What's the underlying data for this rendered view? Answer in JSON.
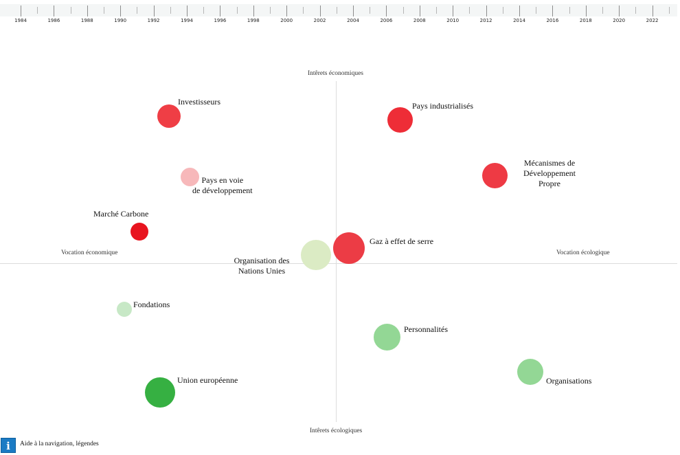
{
  "timeline": {
    "years": [
      "1984",
      "1986",
      "1988",
      "1990",
      "1992",
      "1994",
      "1996",
      "1998",
      "2000",
      "2002",
      "2004",
      "2006",
      "2008",
      "2010",
      "2012",
      "2014",
      "2016",
      "2018",
      "2020",
      "2022"
    ]
  },
  "axes": {
    "top": "Intêrets économiques",
    "bottom": "Intêrets écologiques",
    "left": "Vocation économique",
    "right": "Vocation écologique"
  },
  "nodes": {
    "investisseurs": {
      "label": "Investisseurs",
      "color": "#ef3e45"
    },
    "pays_industrialises": {
      "label": "Pays industrialisés",
      "color": "#ee2d37"
    },
    "pays_en_voie": {
      "label": "Pays en voie\nde développement",
      "color": "#f7b8ba"
    },
    "mdp": {
      "label": "Mécanismes de\nDéveloppement\nPropre",
      "color": "#ee3a44"
    },
    "marche_carbone": {
      "label": "Marché Carbone",
      "color": "#e8141f"
    },
    "onu": {
      "label": "Organisation des\nNations Unies",
      "color": "#dbebc4"
    },
    "ges": {
      "label": "Gaz à effet de serre",
      "color": "#ec3c45"
    },
    "fondations": {
      "label": "Fondations",
      "color": "#c7e8c6"
    },
    "personnalites": {
      "label": "Personnalités",
      "color": "#93d795"
    },
    "organisations": {
      "label": "Organisations",
      "color": "#93d795"
    },
    "union_europeenne": {
      "label": "Union européenne",
      "color": "#36b042"
    }
  },
  "footer": {
    "info_icon": "i",
    "info_text": "Aide à la navigation, légendes"
  }
}
